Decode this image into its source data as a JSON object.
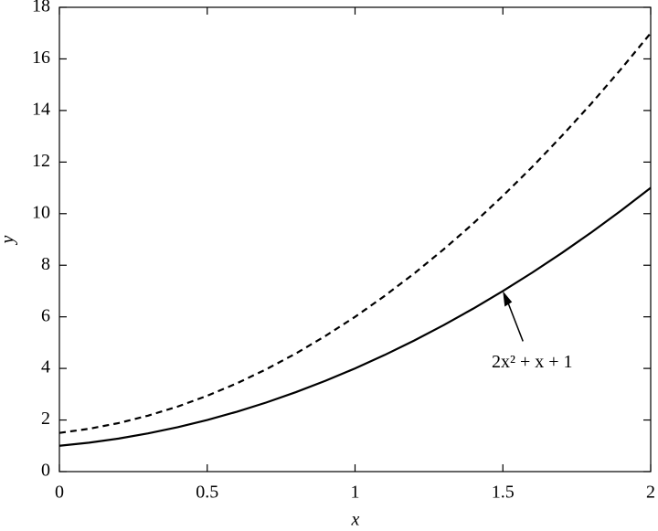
{
  "chart_data": {
    "type": "line",
    "x_label": "x",
    "y_label": "y",
    "x": [
      0,
      0.1,
      0.2,
      0.3,
      0.4,
      0.5,
      0.6,
      0.7,
      0.8,
      0.9,
      1,
      1.1,
      1.2,
      1.3,
      1.4,
      1.5,
      1.6,
      1.7,
      1.8,
      1.9,
      2
    ],
    "series": [
      {
        "color": "#000000",
        "dash": "solid",
        "values": [
          1,
          1.12,
          1.28,
          1.48,
          1.72,
          2,
          2.32,
          2.68,
          3.08,
          3.52,
          4,
          4.52,
          5.08,
          5.68,
          6.32,
          7,
          7.72,
          8.48,
          9.28,
          10.12,
          11
        ]
      },
      {
        "color": "#000000",
        "dash": "dashed",
        "values": [
          1.5,
          1.66,
          1.88,
          2.17,
          2.52,
          2.94,
          3.42,
          3.97,
          4.58,
          5.26,
          6,
          6.81,
          7.68,
          8.62,
          9.62,
          10.69,
          11.82,
          13.02,
          14.28,
          15.61,
          17
        ]
      }
    ],
    "annotation": {
      "text": "2x² + x + 1",
      "xy": [
        1.5,
        7
      ]
    },
    "xlim": [
      0,
      2
    ],
    "ylim": [
      0,
      18
    ],
    "xticks": [
      0,
      0.5,
      1,
      1.5,
      2
    ],
    "yticks": [
      0,
      2,
      4,
      6,
      8,
      10,
      12,
      14,
      16,
      18
    ],
    "grid": false
  }
}
